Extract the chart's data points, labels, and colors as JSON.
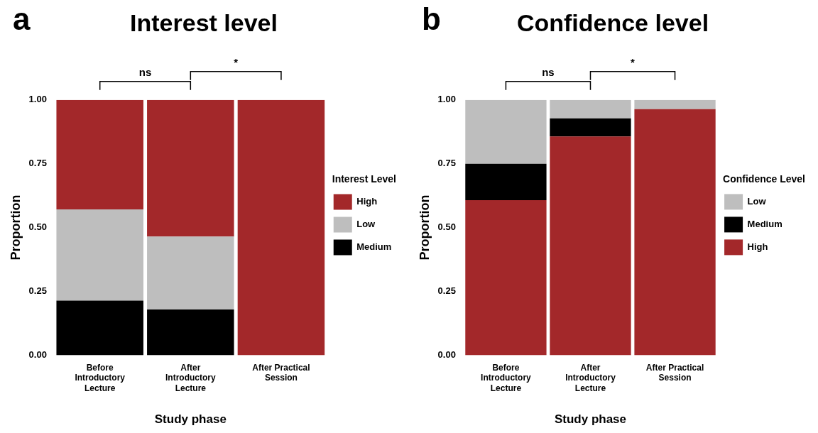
{
  "chart_data": [
    {
      "type": "bar",
      "title": "Interest level",
      "xlabel": "Study phase",
      "ylabel": "Proportion",
      "legend_title": "Interest Level",
      "stacked": true,
      "legend": "right",
      "categories": [
        "Before Introductory Lecture",
        "After Introductory Lecture",
        "After Practical Session"
      ],
      "ylim": [
        0,
        1
      ],
      "yticks": [
        {
          "value": 0,
          "label": "0.00"
        },
        {
          "value": 0.25,
          "label": "0.25"
        },
        {
          "value": 0.5,
          "label": "0.50"
        },
        {
          "value": 0.75,
          "label": "0.75"
        },
        {
          "value": 1,
          "label": "1.00"
        }
      ],
      "annotations": [
        "a",
        "ns",
        "*"
      ],
      "series": [
        {
          "name": "Medium",
          "color": "#000000",
          "values": [
            0.214,
            0.179,
            0
          ]
        },
        {
          "name": "Low",
          "color": "#bebebe",
          "values": [
            0.357,
            0.286,
            0
          ]
        },
        {
          "name": "High",
          "color": "#a3282a",
          "values": [
            0.429,
            0.535,
            1
          ]
        }
      ]
    },
    {
      "type": "bar",
      "title": "Confidence level",
      "xlabel": "Study phase",
      "ylabel": "Proportion",
      "legend_title": "Confidence Level",
      "stacked": true,
      "legend": "right",
      "categories": [
        "Before Introductory Lecture",
        "After Introductory Lecture",
        "After Practical Session"
      ],
      "ylim": [
        0,
        1
      ],
      "yticks": [
        {
          "value": 0,
          "label": "0.00"
        },
        {
          "value": 0.25,
          "label": "0.25"
        },
        {
          "value": 0.5,
          "label": "0.50"
        },
        {
          "value": 0.75,
          "label": "0.75"
        },
        {
          "value": 1,
          "label": "1.00"
        }
      ],
      "annotations": [
        "b",
        "ns",
        "*"
      ],
      "series": [
        {
          "name": "High",
          "color": "#a3282a",
          "values": [
            0.607,
            0.857,
            0.964
          ]
        },
        {
          "name": "Medium",
          "color": "#000000",
          "values": [
            0.143,
            0.071,
            0
          ]
        },
        {
          "name": "Low",
          "color": "#bebebe",
          "values": [
            0.25,
            0.072,
            0.036
          ]
        }
      ]
    }
  ]
}
